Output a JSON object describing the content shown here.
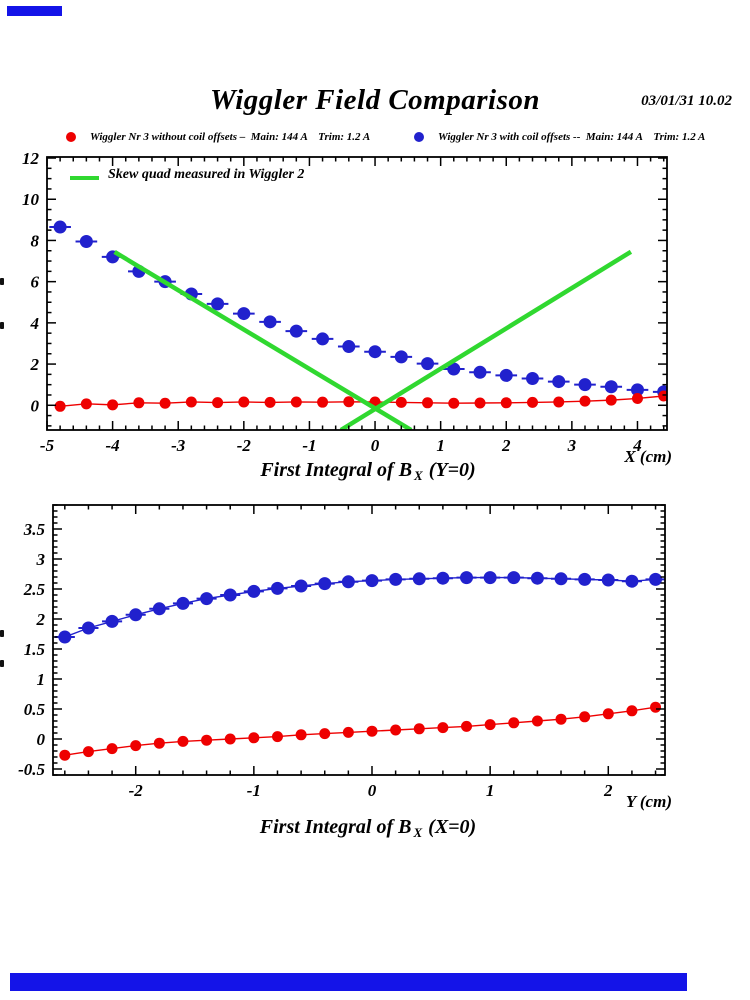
{
  "page": {
    "main_title": "Wiggler Field Comparison",
    "datetime": "03/01/31   10.02",
    "background_color": "#ffffff"
  },
  "decor": {
    "top_left_bar_color": "#1414e8",
    "bottom_bar_color": "#1414e8"
  },
  "header_legend": {
    "items": [
      {
        "marker": "red-dot",
        "marker_color": "#ee0000",
        "label": "Wiggler Nr 3 without coil offsets –  Main: 144 A    Trim: 1.2 A"
      },
      {
        "marker": "blue-dot",
        "marker_color": "#2121cd",
        "label": "Wiggler Nr 3 with coil offsets --  Main: 144 A    Trim: 1.2 A"
      }
    ]
  },
  "chart_data": [
    {
      "type": "scatter",
      "title": "First Integral of Bx (Y=0)",
      "title_parts": {
        "prefix": "First Integral of B",
        "subscript": "X",
        "suffix": " (Y=0)"
      },
      "xlabel": "X (cm)",
      "ylabel": "",
      "grid": false,
      "xlim": [
        -5.0,
        4.45
      ],
      "ylim": [
        -1.2,
        12.05
      ],
      "x_major_ticks": [
        -5,
        -4,
        -3,
        -2,
        -1,
        0,
        1,
        2,
        3,
        4
      ],
      "y_major_ticks": [
        0,
        2,
        4,
        6,
        8,
        10,
        12
      ],
      "x_minor_step": 0.2,
      "y_minor_step": 0.5,
      "x": [
        -4.8,
        -4.4,
        -4.0,
        -3.6,
        -3.2,
        -2.8,
        -2.4,
        -2.0,
        -1.6,
        -1.2,
        -0.8,
        -0.4,
        0.0,
        0.4,
        0.8,
        1.2,
        1.6,
        2.0,
        2.4,
        2.8,
        3.2,
        3.6,
        4.0,
        4.4
      ],
      "series": [
        {
          "name": "Wiggler Nr 3 with coil offsets",
          "color": "#2121cd",
          "marker": "circle",
          "marker_radius": 6.5,
          "connect_line": false,
          "xerr_halfwidth": 0.165,
          "values": [
            8.65,
            7.95,
            7.2,
            6.5,
            6.0,
            5.4,
            4.92,
            4.45,
            4.05,
            3.6,
            3.22,
            2.85,
            2.6,
            2.35,
            2.02,
            1.76,
            1.6,
            1.45,
            1.3,
            1.15,
            1.0,
            0.9,
            0.75,
            0.65
          ]
        },
        {
          "name": "Wiggler Nr 3 without coil offsets",
          "color": "#ee0000",
          "marker": "circle",
          "marker_radius": 5.5,
          "connect_line": true,
          "xerr_halfwidth": 0,
          "values": [
            -0.05,
            0.07,
            0.02,
            0.12,
            0.1,
            0.16,
            0.13,
            0.16,
            0.14,
            0.16,
            0.15,
            0.17,
            0.16,
            0.14,
            0.12,
            0.1,
            0.11,
            0.12,
            0.14,
            0.16,
            0.2,
            0.25,
            0.33,
            0.45
          ]
        }
      ],
      "overlay_lines": {
        "label": "Skew quad measured in Wiggler 2",
        "color": "#30d830",
        "width": 4.5,
        "segments": [
          {
            "x1": -3.97,
            "y1": 7.44,
            "x2": 0.55,
            "y2": -1.2
          },
          {
            "x1": -0.52,
            "y1": -1.2,
            "x2": 3.9,
            "y2": 7.45
          }
        ]
      }
    },
    {
      "type": "scatter",
      "title": "First Integral of Bx (X=0)",
      "title_parts": {
        "prefix": "First Integral of B",
        "subscript": "X",
        "suffix": " (X=0)"
      },
      "xlabel": "Y (cm)",
      "ylabel": "",
      "grid": false,
      "xlim": [
        -2.7,
        2.48
      ],
      "ylim": [
        -0.6,
        3.9
      ],
      "x_major_ticks": [
        -2,
        -1,
        0,
        1,
        2
      ],
      "y_major_ticks": [
        -0.5,
        0,
        0.5,
        1,
        1.5,
        2,
        2.5,
        3,
        3.5
      ],
      "x_minor_step": 0.2,
      "y_minor_step": 0.1,
      "x": [
        -2.6,
        -2.4,
        -2.2,
        -2.0,
        -1.8,
        -1.6,
        -1.4,
        -1.2,
        -1.0,
        -0.8,
        -0.6,
        -0.4,
        -0.2,
        0.0,
        0.2,
        0.4,
        0.6,
        0.8,
        1.0,
        1.2,
        1.4,
        1.6,
        1.8,
        2.0,
        2.2,
        2.4
      ],
      "series": [
        {
          "name": "Wiggler Nr 3 with coil offsets",
          "color": "#2121cd",
          "marker": "circle",
          "marker_radius": 6.5,
          "connect_line": true,
          "xerr_halfwidth": 0.085,
          "values": [
            1.7,
            1.85,
            1.96,
            2.07,
            2.17,
            2.26,
            2.34,
            2.4,
            2.46,
            2.51,
            2.55,
            2.59,
            2.62,
            2.64,
            2.66,
            2.67,
            2.68,
            2.69,
            2.69,
            2.69,
            2.68,
            2.67,
            2.66,
            2.65,
            2.63,
            2.66
          ]
        },
        {
          "name": "Wiggler Nr 3 without coil offsets",
          "color": "#ee0000",
          "marker": "circle",
          "marker_radius": 5.5,
          "connect_line": true,
          "xerr_halfwidth": 0,
          "values": [
            -0.27,
            -0.21,
            -0.16,
            -0.11,
            -0.07,
            -0.04,
            -0.02,
            0.0,
            0.02,
            0.04,
            0.07,
            0.09,
            0.11,
            0.13,
            0.15,
            0.17,
            0.19,
            0.21,
            0.24,
            0.27,
            0.3,
            0.33,
            0.37,
            0.42,
            0.47,
            0.53
          ]
        }
      ]
    }
  ]
}
